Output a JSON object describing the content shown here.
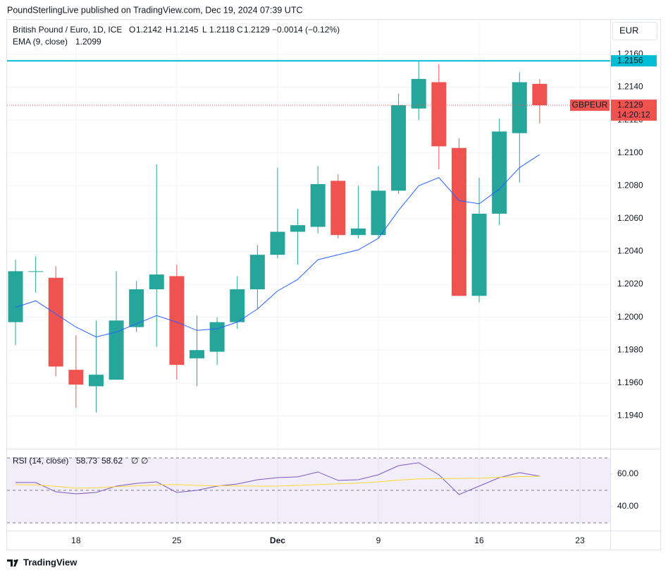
{
  "header": "PoundSterlingLive published on TradingView.com, Dec 19, 2024 07:39 UTC",
  "footer": "TradingView",
  "currency": "EUR",
  "chart_data": [
    {
      "type": "candlestick",
      "title": "British Pound / Euro, 1D, ICE",
      "ohlc_letters": [
        "O",
        "H",
        "L",
        "C"
      ],
      "change_label": "−0.0014 (−0.12%)",
      "symbol": "GBPEUR",
      "countdown": "14:20:12",
      "up_color": "#26a69a",
      "down_color": "#ef5350",
      "open": [
        1.1997,
        1.2028,
        1.2024,
        1.1968,
        1.1958,
        1.1962,
        1.1994,
        1.2017,
        1.2025,
        1.1975,
        1.1979,
        1.1997,
        1.2017,
        1.2038,
        1.2052,
        1.2055,
        1.2083,
        1.205,
        1.205,
        1.2077,
        1.2127,
        1.2143,
        1.2103,
        1.2013,
        1.2063,
        1.2112,
        1.2142
      ],
      "high": [
        1.2035,
        1.2037,
        1.2031,
        1.1989,
        1.1998,
        1.2028,
        1.2022,
        1.2093,
        1.2032,
        1.2001,
        1.2,
        1.2025,
        1.2044,
        1.2091,
        1.2066,
        1.2092,
        1.2087,
        1.208,
        1.2092,
        1.2136,
        1.2156,
        1.2154,
        1.2109,
        1.2085,
        1.2121,
        1.2149,
        1.2145
      ],
      "low": [
        1.1983,
        1.2015,
        1.1964,
        1.1945,
        1.1942,
        1.1962,
        1.1991,
        1.1982,
        1.1962,
        1.1958,
        1.1971,
        1.1993,
        1.2005,
        1.2036,
        1.2032,
        1.2051,
        1.2048,
        1.2048,
        1.2048,
        1.2075,
        1.212,
        1.209,
        1.2013,
        1.2009,
        1.2056,
        1.2082,
        1.2118
      ],
      "close": [
        1.2028,
        1.2028,
        1.197,
        1.1959,
        1.1965,
        1.1998,
        1.2017,
        1.2026,
        1.1971,
        1.198,
        1.1997,
        1.2017,
        1.2038,
        1.2052,
        1.2056,
        1.2081,
        1.205,
        1.2054,
        1.2077,
        1.2129,
        1.2145,
        1.2104,
        1.2013,
        1.2063,
        1.2113,
        1.2143,
        1.2129
      ],
      "overlay": {
        "name": "EMA (9, close)",
        "color": "#2962ff",
        "values": [
          1.2006,
          1.201,
          1.2002,
          1.1994,
          1.1988,
          1.1991,
          1.1996,
          1.2001,
          1.1997,
          1.1992,
          1.1993,
          1.1997,
          1.2005,
          1.2016,
          1.2023,
          1.2035,
          1.2038,
          1.2041,
          1.2048,
          1.2065,
          1.208,
          1.2085,
          1.2071,
          1.2069,
          1.2078,
          1.2091,
          1.2099
        ]
      },
      "hline": {
        "value": 1.2156,
        "color": "#00bcd4"
      },
      "xlim": [
        -0.42,
        29.5
      ],
      "xticks": [
        {
          "value": 3,
          "label": "18"
        },
        {
          "value": 8,
          "label": "25"
        },
        {
          "value": 13,
          "label": "Dec"
        },
        {
          "value": 18,
          "label": "9"
        },
        {
          "value": 23,
          "label": "16"
        },
        {
          "value": 28,
          "label": "23"
        }
      ],
      "ylim": [
        1.192,
        1.2181
      ],
      "yticks": [
        {
          "value": 1.216,
          "label": "1.2160"
        },
        {
          "value": 1.214,
          "label": "1.2140"
        },
        {
          "value": 1.212,
          "label": "1.2120"
        },
        {
          "value": 1.21,
          "label": "1.2100"
        },
        {
          "value": 1.208,
          "label": "1.2080"
        },
        {
          "value": 1.206,
          "label": "1.2060"
        },
        {
          "value": 1.204,
          "label": "1.2040"
        },
        {
          "value": 1.202,
          "label": "1.2020"
        },
        {
          "value": 1.2,
          "label": "1.2000"
        },
        {
          "value": 1.198,
          "label": "1.1980"
        },
        {
          "value": 1.196,
          "label": "1.1960"
        },
        {
          "value": 1.194,
          "label": "1.1940"
        }
      ],
      "grid": true
    },
    {
      "type": "line",
      "title": "RSI (14, close)",
      "extra_labels": [
        "∅",
        "∅"
      ],
      "series": [
        {
          "color": "#7e57c2",
          "values": [
            54.8,
            54.8,
            49.1,
            47.8,
            48.7,
            52.6,
            54.3,
            55.2,
            48.7,
            50.0,
            52.6,
            53.9,
            56.5,
            57.8,
            58.3,
            61.3,
            56.1,
            56.5,
            59.6,
            65.2,
            67.0,
            59.6,
            47.4,
            52.6,
            57.8,
            60.9,
            58.73
          ]
        },
        {
          "color": "#fdd835",
          "values": [
            53.5,
            53.3,
            52.5,
            51.3,
            51.5,
            52.2,
            52.8,
            53.3,
            53.5,
            53.0,
            52.8,
            52.7,
            52.6,
            52.6,
            53.0,
            53.5,
            54.0,
            54.5,
            55.2,
            56.3,
            57.0,
            57.2,
            57.3,
            57.5,
            58.0,
            58.4,
            58.62
          ]
        }
      ],
      "bands": [
        70,
        50,
        30
      ],
      "band_fill": "#7e57c2",
      "ylim": [
        25.2,
        75.2
      ],
      "yticks": [
        {
          "value": 60,
          "label": "60.00"
        },
        {
          "value": 40,
          "label": "40.00"
        }
      ]
    }
  ]
}
